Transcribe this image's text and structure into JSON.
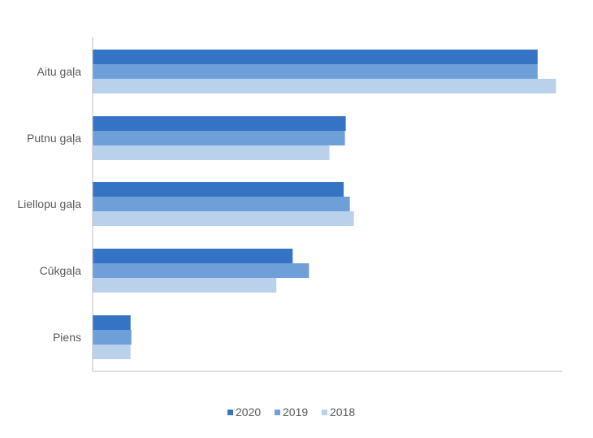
{
  "chart_data": {
    "type": "bar",
    "orientation": "horizontal",
    "categories": [
      "Aitu gaļa",
      "Putnu gaļa",
      "Liellopu gaļa",
      "Cūkgaļa",
      "Piens"
    ],
    "series": [
      {
        "name": "2020",
        "color": "#3574c4",
        "values": [
          109,
          62,
          61.5,
          49,
          9.3
        ]
      },
      {
        "name": "2019",
        "color": "#6f9fd8",
        "values": [
          109,
          61.8,
          63,
          53,
          9.5
        ]
      },
      {
        "name": "2018",
        "color": "#bad1ec",
        "values": [
          113.5,
          58,
          64,
          45,
          9.3
        ]
      }
    ],
    "xlim": [
      0,
      115
    ],
    "grid": false,
    "legend": "bottom-center"
  }
}
